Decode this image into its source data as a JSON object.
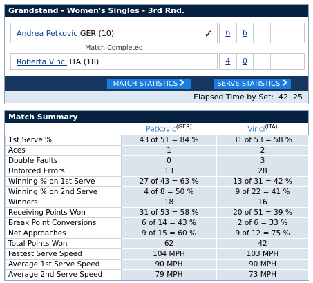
{
  "header": {
    "title": "Grandstand - Women's Singles - 3rd Rnd."
  },
  "players": [
    {
      "name": "Andrea Petkovic",
      "country": "GER (10)",
      "winner_mark": "✓",
      "sets": [
        "6",
        "6"
      ]
    },
    {
      "name": "Roberta Vinci",
      "country": "ITA (18)",
      "sets": [
        "4",
        "0"
      ]
    }
  ],
  "status": "Match Completed",
  "buttons": [
    "MATCH STATISTICS",
    "SERVE STATISTICS"
  ],
  "elapsed": {
    "label": "Elapsed Time by Set:",
    "sets": [
      "42",
      "25"
    ]
  },
  "summary": {
    "title": "Match Summary",
    "columns": [
      {
        "name": "Petkovic",
        "sup": "(GER)"
      },
      {
        "name": "Vinci",
        "sup": "(ITA)"
      }
    ],
    "rows": [
      [
        "1st Serve %",
        "43 of 51 = 84 %",
        "31 of 53 = 58 %"
      ],
      [
        "Aces",
        "1",
        "2"
      ],
      [
        "Double Faults",
        "0",
        "3"
      ],
      [
        "Unforced Errors",
        "13",
        "28"
      ],
      [
        "Winning % on 1st Serve",
        "27 of 43 = 63 %",
        "13 of 31 = 42 %"
      ],
      [
        "Winning % on 2nd Serve",
        "4 of 8 = 50 %",
        "9 of 22 = 41 %"
      ],
      [
        "Winners",
        "18",
        "16"
      ],
      [
        "Receiving Points Won",
        "31 of 53 = 58 %",
        "20 of 51 = 39 %"
      ],
      [
        "Break Point Conversions",
        "6 of 14 = 43 %",
        "2 of 6 = 33 %"
      ],
      [
        "Net Approaches",
        "9 of 15 = 60 %",
        "9 of 12 = 75 %"
      ],
      [
        "Total Points Won",
        "62",
        "42"
      ],
      [
        "Fastest Serve Speed",
        "104 MPH",
        "103 MPH"
      ],
      [
        "Average 1st Serve Speed",
        "90 MPH",
        "90 MPH"
      ],
      [
        "Average 2nd Serve Speed",
        "79 MPH",
        "73 MPH"
      ]
    ]
  }
}
